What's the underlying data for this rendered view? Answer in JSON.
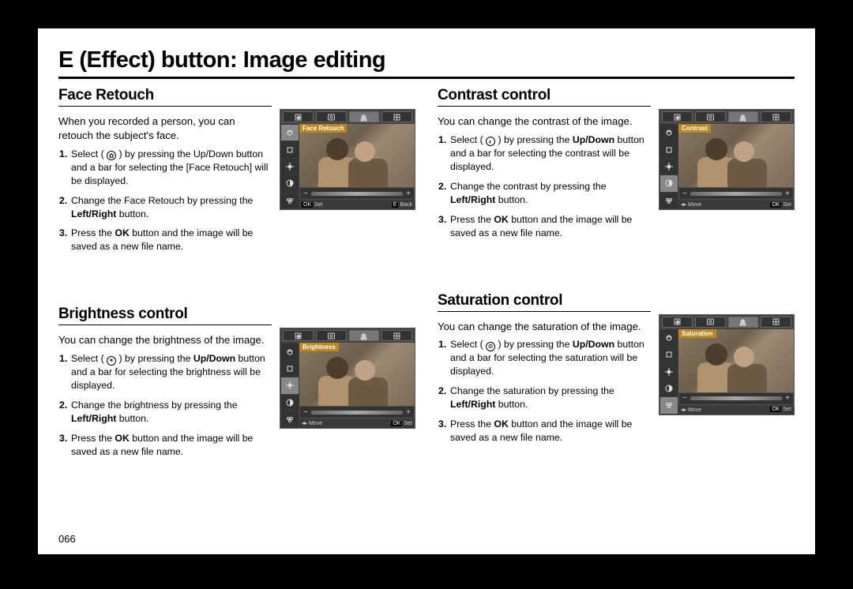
{
  "page_title": "E (Effect) button: Image editing",
  "page_number": "066",
  "lcd": {
    "bottom_ok_label": "OK",
    "bottom_set_label": "Set",
    "bottom_eback_key": "E",
    "bottom_eback_label": "Back",
    "bottom_move_label": "Move",
    "slider_minus": "−",
    "slider_plus": "+"
  },
  "sections": [
    {
      "title": "Face Retouch",
      "intro": "When you recorded a person, you can retouch the subject's face.",
      "icon_glyph": "✿",
      "mode_label": "Face Retouch",
      "show_eback": true,
      "steps": [
        {
          "pre": "Select ( ",
          "post": " ) by pressing the Up/Down button and a bar for selecting the [Face Retouch] will be displayed.",
          "bold_updown": false
        },
        {
          "text_before": "Change the Face Retouch by pressing the ",
          "bold": "Left/Right",
          "text_after": " button."
        },
        {
          "text_before": "Press the ",
          "bold": "OK",
          "text_after": " button and the image will be saved as a new file name."
        }
      ]
    },
    {
      "title": "Brightness control",
      "intro": "You can change the brightness of the image.",
      "icon_glyph": "☀",
      "mode_label": "Brightness",
      "show_eback": false,
      "steps": [
        {
          "pre": "Select ( ",
          "post": " ) by pressing the ",
          "bold_updown": true,
          "post2": " button and a bar for selecting the brightness will be displayed."
        },
        {
          "text_before": "Change the brightness by pressing the ",
          "bold": "Left/Right",
          "text_after": " button."
        },
        {
          "text_before": "Press the ",
          "bold": "OK",
          "text_after": " button and the image will be saved as a new file name."
        }
      ]
    },
    {
      "title": "Contrast control",
      "intro": "You can change the contrast of the image.",
      "icon_glyph": "◐",
      "mode_label": "Contrast",
      "show_eback": false,
      "steps": [
        {
          "pre": "Select ( ",
          "post": " ) by pressing the ",
          "bold_updown": true,
          "post2": " button and a bar for selecting the contrast will be displayed."
        },
        {
          "text_before": "Change the contrast by pressing the ",
          "bold": "Left/Right",
          "text_after": " button."
        },
        {
          "text_before": "Press the ",
          "bold": "OK",
          "text_after": " button and the image will be saved as a new file name."
        }
      ]
    },
    {
      "title": "Saturation control",
      "intro": "You can change the saturation of the image.",
      "icon_glyph": "⊚",
      "mode_label": "Saturation",
      "show_eback": false,
      "steps": [
        {
          "pre": "Select ( ",
          "post": " ) by pressing the ",
          "bold_updown": true,
          "post2": " button and a bar for selecting the saturation will be displayed."
        },
        {
          "text_before": "Change the saturation by pressing the ",
          "bold": "Left/Right",
          "text_after": " button."
        },
        {
          "text_before": "Press the ",
          "bold": "OK",
          "text_after": " button and the image will be saved as a new file name."
        }
      ]
    }
  ]
}
